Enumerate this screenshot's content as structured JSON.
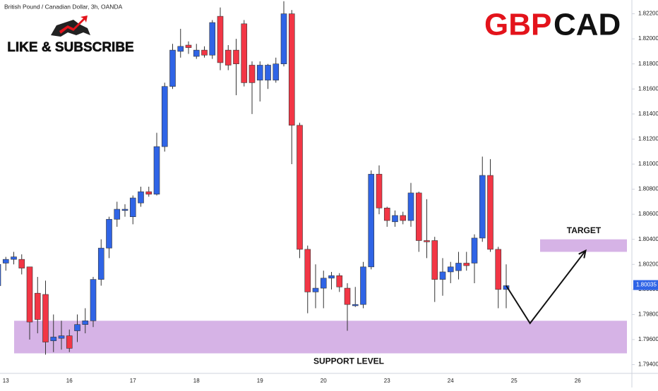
{
  "chart_data": {
    "type": "candlestick",
    "title": "British Pound / Canadian Dollar, 3h, OANDA",
    "symbol_parts": [
      "GBP",
      "CAD"
    ],
    "symbol_colors": [
      "#e3131b",
      "#111111"
    ],
    "promo": "LIKE & SUBSCRIBE",
    "up_color": "#2f64e6",
    "down_color": "#f23645",
    "categories": [
      null,
      "13",
      null,
      null,
      null,
      null,
      null,
      null,
      null,
      "16",
      null,
      null,
      null,
      null,
      null,
      null,
      null,
      "17",
      null,
      null,
      null,
      null,
      null,
      null,
      null,
      "18",
      null,
      null,
      null,
      null,
      null,
      null,
      null,
      "19",
      null,
      null,
      null,
      null,
      null,
      null,
      null,
      "20",
      null,
      null,
      null,
      null,
      null,
      null,
      null,
      "23",
      null,
      null,
      null,
      null,
      null,
      null,
      null,
      "24",
      null,
      null,
      null,
      null,
      null,
      null,
      null,
      "25",
      null,
      null,
      null,
      null,
      null,
      null,
      null,
      "26",
      null
    ],
    "open": [
      1.8003,
      1.8021,
      1.8024,
      1.8024,
      1.8018,
      1.7997,
      1.7996,
      1.7959,
      1.7961,
      1.7963,
      1.7967,
      1.7972,
      1.7975,
      1.8008,
      1.8033,
      1.8056,
      1.8063,
      1.8058,
      1.8069,
      1.8078,
      1.8076,
      1.8114,
      1.8162,
      1.819,
      1.8195,
      1.8186,
      1.8191,
      1.8187,
      1.8218,
      1.8191,
      1.8191,
      1.8212,
      1.8179,
      1.8167,
      1.8167,
      1.8167,
      1.818,
      1.822,
      1.8131,
      1.8032,
      1.7998,
      1.8001,
      1.8009,
      1.8011,
      1.8001,
      1.7987,
      1.7988,
      1.8018,
      1.8092,
      1.8065,
      1.8054,
      1.8059,
      1.8055,
      1.8077,
      1.8039,
      1.8039,
      1.8008,
      1.8014,
      1.8015,
      1.8021,
      1.8021,
      1.8041,
      1.8091,
      1.8032,
      1.8,
      null,
      null,
      null,
      null,
      null,
      null,
      null,
      null,
      null,
      null
    ],
    "high": [
      1.8027,
      1.8026,
      1.803,
      1.8028,
      1.8018,
      1.801,
      1.8007,
      1.798,
      1.7975,
      1.7968,
      1.798,
      1.7985,
      1.801,
      1.804,
      1.8058,
      1.807,
      1.8068,
      1.8075,
      1.8082,
      1.8082,
      1.8125,
      1.8165,
      1.8196,
      1.8208,
      1.8198,
      1.8196,
      1.8194,
      1.8215,
      1.8225,
      1.8195,
      1.82,
      1.8215,
      1.8182,
      1.8182,
      1.818,
      1.8185,
      1.823,
      1.8223,
      1.8133,
      1.8035,
      1.802,
      1.8015,
      1.8014,
      1.8013,
      1.8005,
      1.8002,
      1.8022,
      1.8095,
      1.8099,
      1.8066,
      1.8063,
      1.8062,
      1.8085,
      1.8078,
      1.8072,
      1.8042,
      1.8025,
      1.8022,
      1.803,
      1.803,
      1.8044,
      1.8106,
      1.8104,
      1.8034,
      1.802,
      null,
      null,
      null,
      null,
      null,
      null,
      null,
      null,
      null,
      null
    ],
    "low": [
      1.8,
      1.8015,
      1.802,
      1.8012,
      1.796,
      1.7965,
      1.7948,
      1.795,
      1.7952,
      1.795,
      1.7958,
      1.7965,
      1.797,
      1.8003,
      1.8025,
      1.805,
      1.8058,
      1.8052,
      1.8066,
      1.8074,
      1.8075,
      1.811,
      1.816,
      1.8185,
      1.8188,
      1.8184,
      1.8185,
      1.8184,
      1.8175,
      1.8175,
      1.8155,
      1.8162,
      1.814,
      1.815,
      1.816,
      1.8165,
      1.8178,
      1.81,
      1.8025,
      1.7981,
      1.7985,
      1.7985,
      1.8,
      1.7998,
      1.7967,
      1.7986,
      1.7985,
      1.8016,
      1.806,
      1.805,
      1.805,
      1.8052,
      1.805,
      1.803,
      1.8025,
      1.799,
      1.7995,
      1.8005,
      1.8008,
      1.8015,
      1.8005,
      1.8038,
      1.803,
      1.7985,
      1.7985,
      null,
      null,
      null,
      null,
      null,
      null,
      null,
      null,
      null,
      null
    ],
    "close": [
      1.802,
      1.8024,
      1.8026,
      1.8017,
      1.7974,
      1.7976,
      1.7958,
      1.7962,
      1.7963,
      1.7953,
      1.7972,
      1.7975,
      1.8008,
      1.8033,
      1.8056,
      1.8064,
      1.8064,
      1.8073,
      1.8078,
      1.8076,
      1.8114,
      1.8162,
      1.8191,
      1.8194,
      1.8193,
      1.8191,
      1.8187,
      1.8213,
      1.8181,
      1.8179,
      1.818,
      1.8165,
      1.8165,
      1.8179,
      1.8179,
      1.818,
      1.822,
      1.8131,
      1.8032,
      1.7998,
      1.8001,
      1.8009,
      1.8011,
      1.8002,
      1.7988,
      1.7988,
      1.8018,
      1.8092,
      1.8065,
      1.8055,
      1.8059,
      1.8055,
      1.8077,
      1.8039,
      1.8038,
      1.8008,
      1.8014,
      1.8018,
      1.8021,
      1.8019,
      1.8041,
      1.8091,
      1.8032,
      1.8,
      1.8003,
      null,
      null,
      null,
      null,
      null,
      null,
      null,
      null,
      null,
      null
    ],
    "ylim": [
      1.7933,
      1.8231
    ],
    "yticks": [
      {
        "value": 1.794,
        "label": "1.79400"
      },
      {
        "value": 1.796,
        "label": "1.79600"
      },
      {
        "value": 1.798,
        "label": "1.79800"
      },
      {
        "value": 1.8,
        "label": "1.80000"
      },
      {
        "value": 1.802,
        "label": "1.80200"
      },
      {
        "value": 1.804,
        "label": "1.80400"
      },
      {
        "value": 1.806,
        "label": "1.80600"
      },
      {
        "value": 1.808,
        "label": "1.80800"
      },
      {
        "value": 1.81,
        "label": "1.81000"
      },
      {
        "value": 1.812,
        "label": "1.81200"
      },
      {
        "value": 1.814,
        "label": "1.81400"
      },
      {
        "value": 1.816,
        "label": "1.81600"
      },
      {
        "value": 1.818,
        "label": "1.81800"
      },
      {
        "value": 1.82,
        "label": "1.82000"
      },
      {
        "value": 1.822,
        "label": "1.82200"
      }
    ],
    "last_price": {
      "value": 1.80035,
      "label": "1.80035"
    },
    "zones": [
      {
        "name": "SUPPORT LEVEL",
        "range": [
          1.7949,
          1.7975
        ],
        "color": "#cfa6e2"
      },
      {
        "name": "TARGET",
        "range": [
          1.803,
          1.804
        ],
        "color": "#cfa6e2"
      }
    ],
    "projection": {
      "x": [
        64,
        67,
        74
      ],
      "values": [
        1.8003,
        1.7973,
        1.8031
      ]
    }
  }
}
